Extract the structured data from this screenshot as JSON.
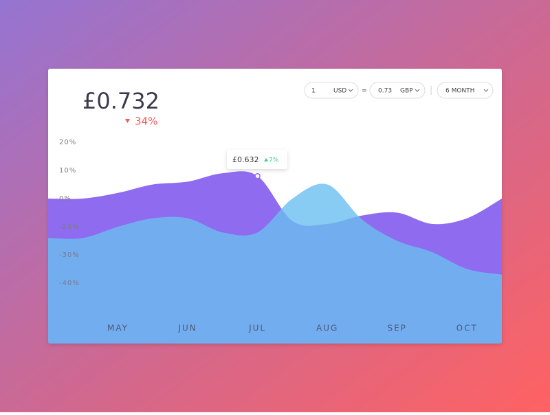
{
  "header": {
    "price": "£0.732",
    "change": "34%"
  },
  "controls": {
    "amount": "1",
    "from": "USD",
    "equals": "=",
    "rate": "0.73",
    "to": "GBP",
    "period": "6 MONTH"
  },
  "tooltip": {
    "price": "£0.632",
    "change": "7%"
  },
  "chart_data": {
    "type": "area",
    "categories": [
      null,
      null,
      "MAY",
      null,
      "JUN",
      null,
      "JUL",
      null,
      "AUG",
      null,
      "SEP",
      null,
      "OCT",
      null
    ],
    "series": [
      {
        "color": "#8f6bf0",
        "values": [
          0,
          0,
          2,
          5,
          6,
          9,
          8,
          -16,
          -18,
          -12,
          -10,
          -18,
          -14,
          0
        ]
      },
      {
        "color": "#6abef0",
        "values": [
          -24,
          -24,
          -20,
          -14,
          -14,
          -22,
          -22,
          0,
          5,
          -15,
          -25,
          -29,
          -35,
          -37
        ]
      }
    ],
    "ylim": [
      -62,
      30
    ],
    "yticks": [
      {
        "value": 20,
        "label": "20%"
      },
      {
        "value": 10,
        "label": "10%"
      },
      {
        "value": 0,
        "label": "0%"
      },
      {
        "value": -20,
        "label": "-20%"
      },
      {
        "value": -30,
        "label": "-30%"
      },
      {
        "value": -40,
        "label": "-40%"
      }
    ]
  }
}
